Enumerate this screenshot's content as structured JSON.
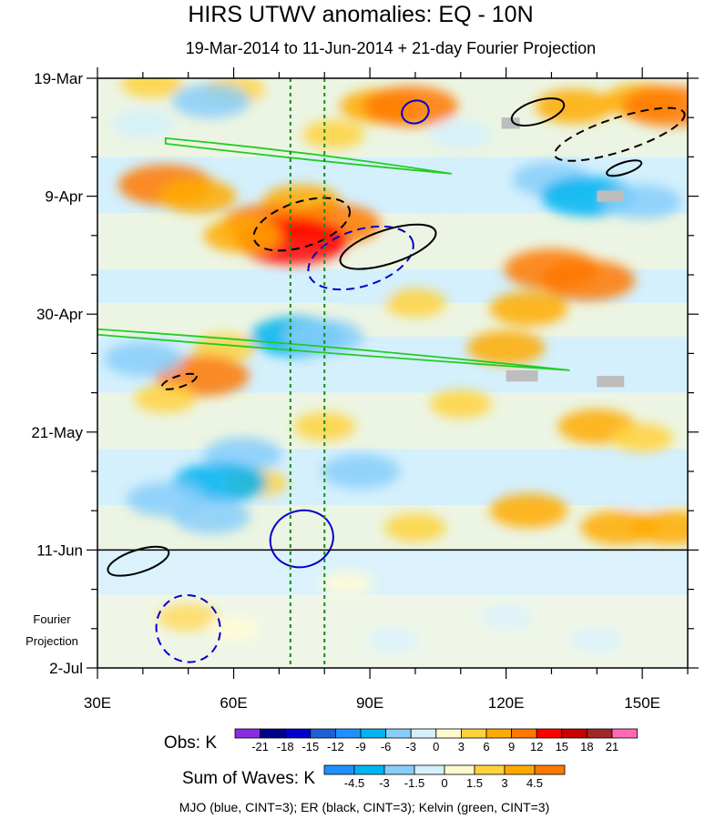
{
  "chart_data": {
    "type": "heatmap",
    "title": "HIRS UTWV anomalies: EQ - 10N",
    "subtitle": "19-Mar-2014 to 11-Jun-2014 + 21-day Fourier Projection",
    "x_axis": {
      "range_deg_east": [
        30,
        160
      ],
      "ticks": [
        {
          "value": 30,
          "label": "30E"
        },
        {
          "value": 60,
          "label": "60E"
        },
        {
          "value": 90,
          "label": "90E"
        },
        {
          "value": 120,
          "label": "120E"
        },
        {
          "value": 150,
          "label": "150E"
        }
      ]
    },
    "y_axis": {
      "range_days_since_start": [
        0,
        105
      ],
      "direction": "downward",
      "ticks": [
        {
          "value": 0,
          "label": "19-Mar"
        },
        {
          "value": 21,
          "label": "9-Apr"
        },
        {
          "value": 42,
          "label": "30-Apr"
        },
        {
          "value": 63,
          "label": "21-May"
        },
        {
          "value": 84,
          "label": "11-Jun"
        },
        {
          "value": 105,
          "label": "2-Jul"
        }
      ]
    },
    "projection_start_day": 84,
    "projection_label": [
      "Fourier",
      "Projection"
    ],
    "reference_longitudes": [
      72.5,
      80
    ],
    "obs_legend": {
      "label": "Obs: K",
      "levels": [
        "-21",
        "-18",
        "-15",
        "-12",
        "-9",
        "-6",
        "-3",
        "0",
        "3",
        "6",
        "9",
        "12",
        "15",
        "18",
        "21"
      ],
      "colors": [
        "#8a2be2",
        "#00008b",
        "#0000cd",
        "#1e5fd6",
        "#1e90ff",
        "#00b4f0",
        "#87cefa",
        "#d4f0fc",
        "#fffacd",
        "#ffd23c",
        "#ffaa00",
        "#ff7800",
        "#ff0000",
        "#c80000",
        "#a02828",
        "#ff69b4"
      ]
    },
    "waves_legend": {
      "label": "Sum of Waves: K",
      "levels": [
        "-4.5",
        "-3",
        "-1.5",
        "0",
        "1.5",
        "3",
        "4.5"
      ],
      "colors": [
        "#1e90ff",
        "#00b4f0",
        "#87cefa",
        "#d4f0fc",
        "#fffacd",
        "#ffd23c",
        "#ffaa00",
        "#ff7800"
      ]
    },
    "features": [
      {
        "name": "MJO",
        "color": "#0000cd",
        "dashed": false,
        "cx": 100,
        "cy": 6,
        "rx": 3,
        "ry": 2
      },
      {
        "name": "MJO",
        "color": "#0000cd",
        "dashed": true,
        "cx": 88,
        "cy": 32,
        "rx": 12,
        "ry": 5
      },
      {
        "name": "MJO",
        "color": "#0000cd",
        "dashed": false,
        "cx": 75,
        "cy": 82,
        "rx": 7,
        "ry": 5
      },
      {
        "name": "MJO",
        "color": "#0000cd",
        "dashed": true,
        "cx": 50,
        "cy": 98,
        "rx": 7,
        "ry": 6
      },
      {
        "name": "ER",
        "color": "#000000",
        "dashed": false,
        "cx": 127,
        "cy": 6,
        "rx": 6,
        "ry": 2
      },
      {
        "name": "ER",
        "color": "#000000",
        "dashed": true,
        "cx": 145,
        "cy": 10,
        "rx": 15,
        "ry": 3
      },
      {
        "name": "ER",
        "color": "#000000",
        "dashed": true,
        "cx": 75,
        "cy": 26,
        "rx": 11,
        "ry": 4
      },
      {
        "name": "ER",
        "color": "#000000",
        "dashed": false,
        "cx": 94,
        "cy": 30,
        "rx": 11,
        "ry": 3
      },
      {
        "name": "ER",
        "color": "#000000",
        "dashed": false,
        "cx": 146,
        "cy": 16,
        "rx": 4,
        "ry": 1
      },
      {
        "name": "ER",
        "color": "#000000",
        "dashed": true,
        "cx": 48,
        "cy": 54,
        "rx": 4,
        "ry": 1
      },
      {
        "name": "ER",
        "color": "#000000",
        "dashed": false,
        "cx": 39,
        "cy": 86,
        "rx": 7,
        "ry": 2
      }
    ],
    "kelvin_bands": [
      {
        "name": "Kelvin",
        "from": [
          45,
          11
        ],
        "to": [
          108,
          17
        ]
      },
      {
        "name": "Kelvin",
        "from": [
          30,
          45
        ],
        "to": [
          134,
          52
        ]
      }
    ],
    "missing_patches": [
      {
        "x": 119,
        "y": 7,
        "w": 4,
        "h": 2
      },
      {
        "x": 140,
        "y": 20,
        "w": 6,
        "h": 2
      },
      {
        "x": 120,
        "y": 52,
        "w": 7,
        "h": 2
      },
      {
        "x": 140,
        "y": 53,
        "w": 6,
        "h": 2
      }
    ],
    "warm_blobs": [
      {
        "x": 42,
        "y": 1,
        "v": 3
      },
      {
        "x": 60,
        "y": 2,
        "v": 3
      },
      {
        "x": 92,
        "y": 5,
        "v": 6
      },
      {
        "x": 99,
        "y": 5,
        "v": 9
      },
      {
        "x": 135,
        "y": 5,
        "v": 6
      },
      {
        "x": 150,
        "y": 4,
        "v": 6
      },
      {
        "x": 156,
        "y": 5,
        "v": 9
      },
      {
        "x": 82,
        "y": 10,
        "v": 3
      },
      {
        "x": 45,
        "y": 19,
        "v": 9
      },
      {
        "x": 52,
        "y": 21,
        "v": 6
      },
      {
        "x": 75,
        "y": 22,
        "v": 6
      },
      {
        "x": 68,
        "y": 26,
        "v": 9
      },
      {
        "x": 82,
        "y": 26,
        "v": 9
      },
      {
        "x": 73,
        "y": 29,
        "v": 12
      },
      {
        "x": 62,
        "y": 28,
        "v": 6
      },
      {
        "x": 130,
        "y": 34,
        "v": 9
      },
      {
        "x": 138,
        "y": 36,
        "v": 9
      },
      {
        "x": 125,
        "y": 41,
        "v": 6
      },
      {
        "x": 120,
        "y": 48,
        "v": 6
      },
      {
        "x": 100,
        "y": 40,
        "v": 3
      },
      {
        "x": 58,
        "y": 48,
        "v": 3
      },
      {
        "x": 53,
        "y": 53,
        "v": 9
      },
      {
        "x": 45,
        "y": 57,
        "v": 3
      },
      {
        "x": 140,
        "y": 62,
        "v": 6
      },
      {
        "x": 150,
        "y": 64,
        "v": 3
      },
      {
        "x": 80,
        "y": 62,
        "v": 3
      },
      {
        "x": 110,
        "y": 58,
        "v": 3
      },
      {
        "x": 125,
        "y": 77,
        "v": 6
      },
      {
        "x": 145,
        "y": 80,
        "v": 6
      },
      {
        "x": 156,
        "y": 80,
        "v": 6
      },
      {
        "x": 100,
        "y": 80,
        "v": 3
      },
      {
        "x": 65,
        "y": 72,
        "v": 3
      },
      {
        "x": 50,
        "y": 96,
        "v": 3
      },
      {
        "x": 60,
        "y": 98,
        "v": 1.5
      },
      {
        "x": 85,
        "y": 90,
        "v": 1.5
      }
    ],
    "cool_blobs": [
      {
        "x": 55,
        "y": 4,
        "v": -6
      },
      {
        "x": 40,
        "y": 8,
        "v": -3
      },
      {
        "x": 110,
        "y": 10,
        "v": -3
      },
      {
        "x": 130,
        "y": 18,
        "v": -6
      },
      {
        "x": 138,
        "y": 21,
        "v": -9
      },
      {
        "x": 150,
        "y": 22,
        "v": -6
      },
      {
        "x": 106,
        "y": 20,
        "v": -3
      },
      {
        "x": 88,
        "y": 38,
        "v": -3
      },
      {
        "x": 74,
        "y": 46,
        "v": -9
      },
      {
        "x": 80,
        "y": 46,
        "v": -6
      },
      {
        "x": 40,
        "y": 50,
        "v": -6
      },
      {
        "x": 62,
        "y": 67,
        "v": -6
      },
      {
        "x": 57,
        "y": 72,
        "v": -9
      },
      {
        "x": 55,
        "y": 78,
        "v": -6
      },
      {
        "x": 45,
        "y": 75,
        "v": -6
      },
      {
        "x": 88,
        "y": 70,
        "v": -6
      },
      {
        "x": 110,
        "y": 72,
        "v": -3
      },
      {
        "x": 150,
        "y": 74,
        "v": -3
      },
      {
        "x": 120,
        "y": 96,
        "v": -1.5
      },
      {
        "x": 140,
        "y": 100,
        "v": -1.5
      },
      {
        "x": 95,
        "y": 100,
        "v": -1.5
      }
    ]
  },
  "caption": "MJO (blue, CINT=3); ER (black, CINT=3); Kelvin (green, CINT=3)"
}
